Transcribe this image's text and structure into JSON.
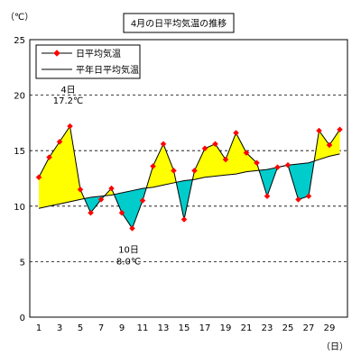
{
  "chart_data": {
    "type": "line",
    "title": "4月の日平均気温の推移",
    "ylabel": "（℃）",
    "xlabel": "（日）",
    "ylim": [
      0,
      25
    ],
    "yticks": [
      0,
      5,
      10,
      15,
      20,
      25
    ],
    "xlim": [
      1,
      30
    ],
    "xticks": [
      1,
      3,
      5,
      7,
      9,
      11,
      13,
      15,
      17,
      19,
      21,
      23,
      25,
      27,
      29
    ],
    "grid": "horizontal-dashed",
    "legend_position": "top-left",
    "x": [
      1,
      2,
      3,
      4,
      5,
      6,
      7,
      8,
      9,
      10,
      11,
      12,
      13,
      14,
      15,
      16,
      17,
      18,
      19,
      20,
      21,
      22,
      23,
      24,
      25,
      26,
      27,
      28,
      29,
      30
    ],
    "series": [
      {
        "name": "日平均気温",
        "color": "#ff0000",
        "marker": "diamond",
        "values": [
          12.6,
          14.4,
          15.8,
          17.2,
          11.5,
          9.4,
          10.6,
          11.6,
          9.4,
          8.0,
          10.5,
          13.6,
          15.6,
          13.2,
          8.8,
          13.2,
          15.2,
          15.6,
          14.2,
          16.6,
          14.8,
          13.9,
          10.9,
          13.5,
          13.7,
          10.6,
          10.9,
          16.8,
          15.5,
          16.9
        ]
      },
      {
        "name": "平年日平均気温",
        "color": "#000000",
        "marker": "none",
        "values": [
          9.8,
          10.0,
          10.2,
          10.4,
          10.6,
          10.8,
          10.9,
          11.0,
          11.2,
          11.4,
          11.6,
          11.7,
          11.9,
          12.1,
          12.3,
          12.4,
          12.6,
          12.7,
          12.8,
          12.9,
          13.1,
          13.2,
          13.3,
          13.5,
          13.7,
          13.8,
          13.9,
          14.2,
          14.5,
          14.7
        ]
      }
    ],
    "fill_colors": {
      "above": "#ffff00",
      "below": "#00cccc"
    },
    "annotations": [
      {
        "day_label": "4日",
        "value_label": "17.2℃",
        "x": 4,
        "y": 17.2
      },
      {
        "day_label": "10日",
        "value_label": "8.0℃",
        "x": 10,
        "y": 8.0
      }
    ]
  }
}
